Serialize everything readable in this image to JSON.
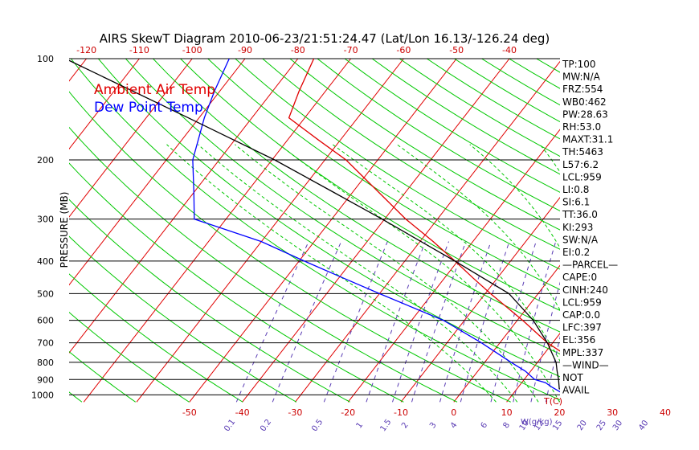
{
  "title": "AIRS SkewT Diagram 2010-06-23/21:51:24.47 (Lat/Lon 16.13/-126.24 deg)",
  "legend": {
    "ambient": "Ambient Air Temp",
    "dewpoint": "Dew Point Temp"
  },
  "colors": {
    "temperature": "#e00000",
    "dewpoint": "#0000ff",
    "parcel": "#000000",
    "isotherm": "#e00000",
    "dry_adiabat": "#00c800",
    "moist_adiabat": "#00c800",
    "mixing_ratio": "#5a3cb4",
    "isobar": "#000000",
    "text": "#000000"
  },
  "stats": [
    "TP:100",
    "MW:N/A",
    "FRZ:554",
    "WB0:462",
    "PW:28.63",
    "RH:53.0",
    "MAXT:31.1",
    "TH:5463",
    "L57:6.2",
    "LCL:959",
    "LI:0.8",
    "SI:6.1",
    "TT:36.0",
    "KI:293",
    "SW:N/A",
    "EI:0.2",
    "—PARCEL—",
    "CAPE:0",
    "CINH:240",
    "LCL:959",
    "CAP:0.0",
    "LFC:397",
    "EL:356",
    "MPL:337",
    "—WIND—",
    "NOT",
    "AVAIL"
  ],
  "chart_data": {
    "type": "line",
    "title": "AIRS SkewT Diagram 2010-06-23/21:51:24.47 (Lat/Lon 16.13/-126.24 deg)",
    "ylabel": "PRESSURE (MB)",
    "xlabel_bottom": "T(C)",
    "xlabel_mixing": "W(g/kg)",
    "y_scale": "log",
    "ylim": [
      1050,
      100
    ],
    "pressure_ticks": [
      "100",
      "200",
      "300",
      "400",
      "500",
      "600",
      "700",
      "800",
      "900",
      "1000"
    ],
    "temperature_ticks_top": [
      "-120",
      "-110",
      "-100",
      "-90",
      "-80",
      "-70",
      "-60",
      "-50",
      "-40"
    ],
    "temperature_ticks_bottom": [
      "-50",
      "-40",
      "-30",
      "-20",
      "-10",
      "0",
      "10",
      "20",
      "30",
      "40"
    ],
    "mixing_ratio_labels": [
      "0.1",
      "0.2",
      "0.5",
      "1",
      "1.5",
      "2",
      "3",
      "4",
      "6",
      "8",
      "10",
      "12",
      "15",
      "20",
      "25",
      "30",
      "40"
    ],
    "series": [
      {
        "name": "Ambient Air Temp",
        "pressure": [
          1013,
          985,
          950,
          920,
          900,
          850,
          800,
          700,
          600,
          500,
          450,
          400,
          350,
          300,
          250,
          200,
          175,
          150,
          125,
          100
        ],
        "temperature": [
          24.0,
          21.0,
          19.6,
          19.5,
          19.5,
          19.0,
          17.5,
          9.0,
          1.0,
          -9.0,
          -14.5,
          -20.5,
          -27.5,
          -36.0,
          -45.0,
          -56.0,
          -64.0,
          -73.0,
          -75.0,
          -77.0
        ]
      },
      {
        "name": "Dew Point Temp",
        "pressure": [
          1013,
          985,
          950,
          920,
          900,
          850,
          800,
          700,
          600,
          500,
          450,
          400,
          350,
          300,
          250,
          200,
          150,
          125,
          100
        ],
        "temperature": [
          20.0,
          19.0,
          16.5,
          14.5,
          12.0,
          9.0,
          5.0,
          -3.5,
          -14.0,
          -30.0,
          -39.0,
          -49.0,
          -60.0,
          -76.0,
          -80.0,
          -85.0,
          -89.0,
          -91.0,
          -93.0
        ]
      },
      {
        "pressure": [
          1013,
          959,
          900,
          850,
          800,
          700,
          600,
          500,
          400,
          300,
          250,
          200,
          150,
          100
        ],
        "temperature": [
          24.0,
          18.0,
          16.5,
          15.0,
          13.5,
          9.0,
          3.0,
          -5.5,
          -20.5,
          -40.5,
          -53.5,
          -69.5,
          -92.0,
          -124.0
        ]
      }
    ]
  }
}
